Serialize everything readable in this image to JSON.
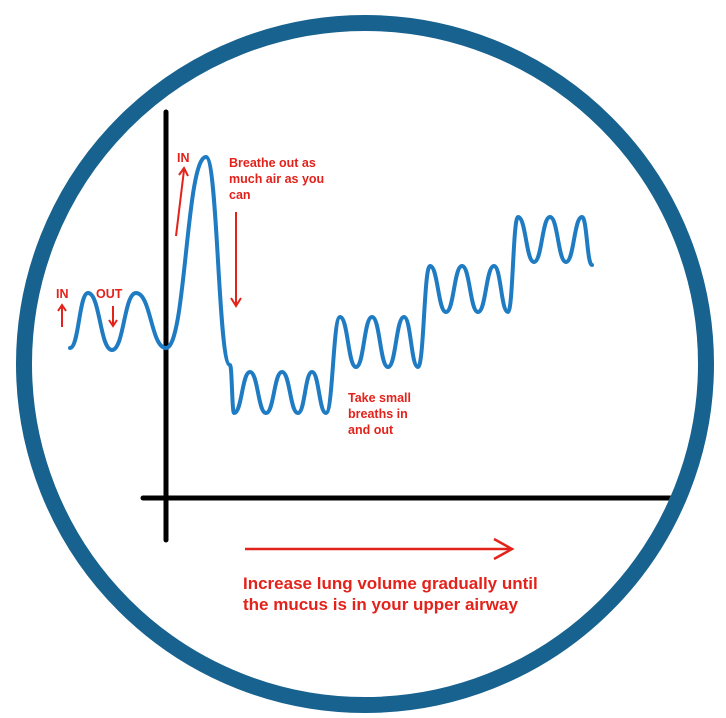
{
  "colors": {
    "ring": "#17628f",
    "wave": "#1f7cc3",
    "annotation": "#e3221b",
    "axis": "#000000",
    "background": "#ffffff"
  },
  "labels": {
    "in_left": "IN",
    "out_left": "OUT",
    "in_top": "IN",
    "breathe_out": [
      "Breathe out as",
      "much air as you",
      "can"
    ],
    "small_breaths": [
      "Take small",
      "breaths in",
      "and out"
    ],
    "increase": [
      "Increase lung volume gradually until",
      "the mucus is in your upper airway"
    ]
  },
  "icons": {
    "arrow_up_left": "arrow-up-icon",
    "arrow_down_left": "arrow-down-icon",
    "arrow_up_top": "arrow-up-icon",
    "arrow_down_long": "arrow-down-icon",
    "arrow_right_long": "arrow-right-icon"
  }
}
